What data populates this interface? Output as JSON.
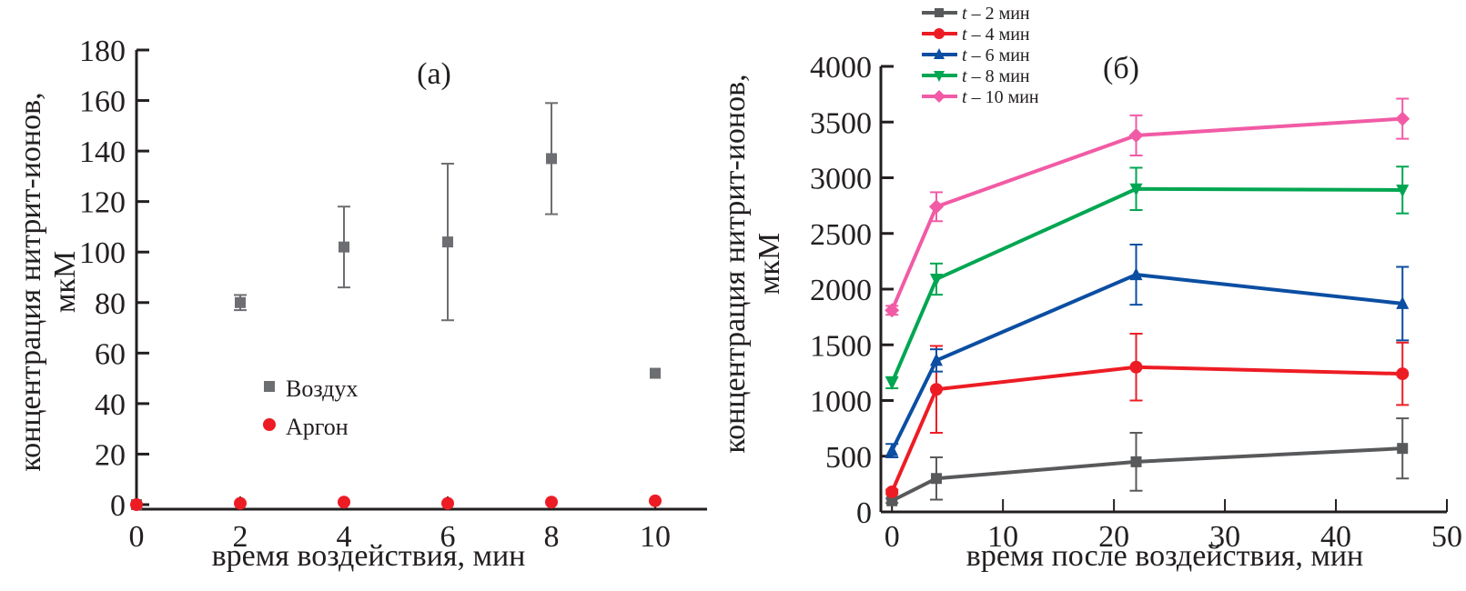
{
  "chart_data": [
    {
      "type": "scatter",
      "panel_label": "(a)",
      "xlabel": "время воздействия, мин",
      "ylabel_line1": "концентрация нитрит-ионов,",
      "ylabel_line2": "мкМ",
      "xlim": [
        0,
        11
      ],
      "ylim": [
        0,
        180
      ],
      "xticks": [
        0,
        2,
        4,
        6,
        8,
        10
      ],
      "yticks": [
        0,
        20,
        40,
        60,
        80,
        100,
        120,
        140,
        160,
        180
      ],
      "grid": false,
      "legend_position": "center-left",
      "series": [
        {
          "name": "Воздух",
          "marker": "square",
          "color": "#6d6e71",
          "x": [
            0,
            2,
            4,
            6,
            8,
            10
          ],
          "y": [
            0,
            80,
            102,
            104,
            137,
            52
          ],
          "err": [
            0,
            3,
            16,
            31,
            22,
            0
          ]
        },
        {
          "name": "Аргон",
          "marker": "circle",
          "color": "#ed1c24",
          "x": [
            0,
            2,
            4,
            6,
            8,
            10
          ],
          "y": [
            0,
            0.5,
            1,
            0.5,
            1,
            1.5
          ],
          "err": [
            0,
            0,
            0,
            0,
            0,
            0
          ]
        }
      ]
    },
    {
      "type": "line",
      "panel_label": "(б)",
      "xlabel": "время после воздействия, мин",
      "ylabel_line1": "концентрация нитрит-ионов,",
      "ylabel_line2": "мкМ",
      "xlim": [
        -1,
        50
      ],
      "ylim": [
        0,
        4000
      ],
      "xticks": [
        0,
        10,
        20,
        30,
        40,
        50
      ],
      "yticks": [
        0,
        500,
        1000,
        1500,
        2000,
        2500,
        3000,
        3500,
        4000
      ],
      "grid": false,
      "legend_position": "top-left",
      "x": [
        0,
        4,
        22,
        46
      ],
      "series": [
        {
          "name_prefix": "t",
          "name_suffix": " – 2 мин",
          "marker": "square",
          "color": "#58595b",
          "y": [
            100,
            300,
            450,
            570
          ],
          "err": [
            20,
            190,
            260,
            270
          ]
        },
        {
          "name_prefix": "t",
          "name_suffix": " – 4 мин",
          "marker": "circle",
          "color": "#ed1c24",
          "y": [
            180,
            1100,
            1300,
            1240
          ],
          "err": [
            20,
            390,
            300,
            280
          ]
        },
        {
          "name_prefix": "t",
          "name_suffix": " – 6 мин",
          "marker": "triangle-up",
          "color": "#0b4ea2",
          "y": [
            550,
            1360,
            2130,
            1870
          ],
          "err": [
            60,
            100,
            270,
            330
          ]
        },
        {
          "name_prefix": "t",
          "name_suffix": " – 8 мин",
          "marker": "triangle-down",
          "color": "#00a651",
          "y": [
            1160,
            2090,
            2900,
            2890
          ],
          "err": [
            50,
            140,
            190,
            210
          ]
        },
        {
          "name_prefix": "t",
          "name_suffix": " – 10 мин",
          "marker": "diamond",
          "color": "#f15ba5",
          "y": [
            1810,
            2740,
            3380,
            3530
          ],
          "err": [
            40,
            130,
            180,
            180
          ]
        }
      ]
    }
  ]
}
